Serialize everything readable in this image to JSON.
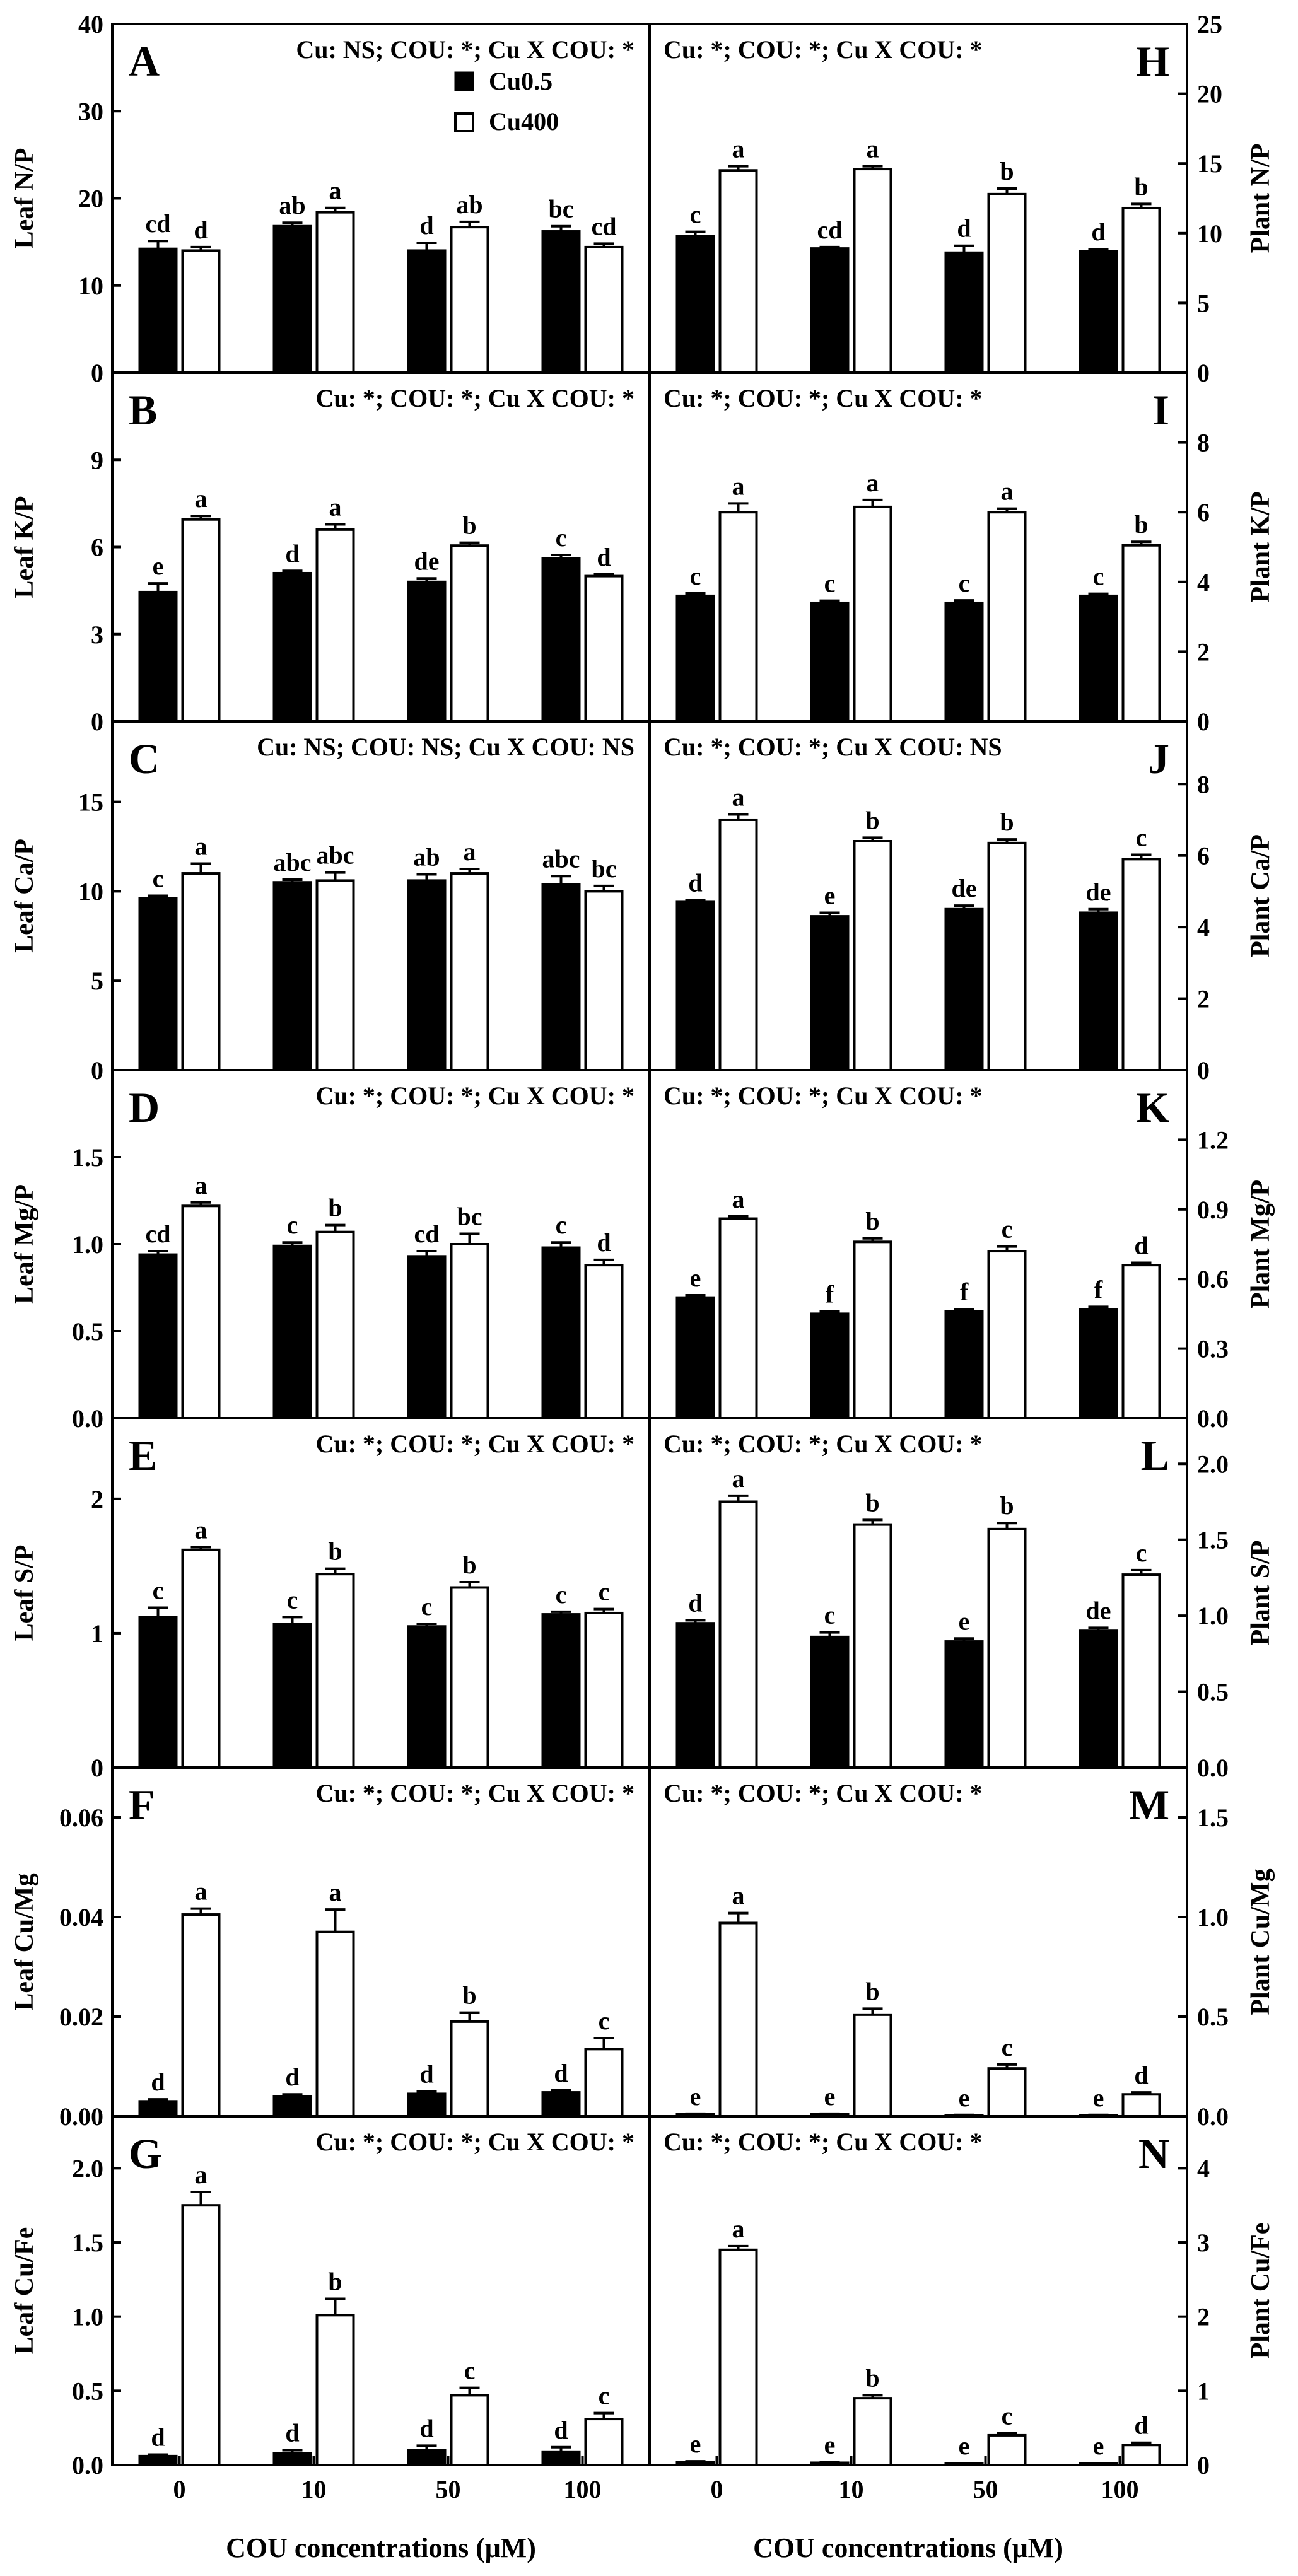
{
  "figure": {
    "xlabel": "COU concentrations (μM)",
    "categories": [
      "0",
      "10",
      "50",
      "100"
    ],
    "legend": [
      {
        "name": "Cu0.5",
        "fill": "#000000"
      },
      {
        "name": "Cu400",
        "fill": "#ffffff"
      }
    ]
  },
  "chart_data": [
    {
      "type": "bar",
      "panel": "A",
      "column": "left",
      "ylabel": "Leaf N/P",
      "stats": "Cu: NS; COU: *; Cu X COU: *",
      "ylim": [
        0,
        40
      ],
      "yticks": [
        0,
        10,
        20,
        30,
        40
      ],
      "tick_labels": [
        "0",
        "10",
        "20",
        "30",
        "40"
      ],
      "categories": [
        "0",
        "10",
        "50",
        "100"
      ],
      "series": [
        {
          "name": "Cu0.5",
          "values": [
            14.2,
            16.8,
            14.0,
            16.2
          ],
          "errors": [
            0.9,
            0.4,
            0.9,
            0.6
          ],
          "letters": [
            "cd",
            "ab",
            "d",
            "bc"
          ]
        },
        {
          "name": "Cu400",
          "values": [
            14.0,
            18.4,
            16.7,
            14.4
          ],
          "errors": [
            0.4,
            0.5,
            0.6,
            0.4
          ],
          "letters": [
            "d",
            "a",
            "ab",
            "cd"
          ]
        }
      ]
    },
    {
      "type": "bar",
      "panel": "B",
      "column": "left",
      "ylabel": "Leaf K/P",
      "stats": "Cu: *; COU: *; Cu X COU: *",
      "ylim": [
        0,
        12
      ],
      "yticks": [
        0,
        3,
        6,
        9
      ],
      "tick_labels": [
        "0",
        "3",
        "6",
        "9"
      ],
      "categories": [
        "0",
        "10",
        "50",
        "100"
      ],
      "series": [
        {
          "name": "Cu0.5",
          "values": [
            4.45,
            5.1,
            4.8,
            5.6
          ],
          "errors": [
            0.3,
            0.08,
            0.12,
            0.13
          ],
          "letters": [
            "e",
            "d",
            "de",
            "c"
          ]
        },
        {
          "name": "Cu400",
          "values": [
            6.95,
            6.6,
            6.05,
            5.0
          ],
          "errors": [
            0.12,
            0.18,
            0.1,
            0.06
          ],
          "letters": [
            "a",
            "a",
            "b",
            "d"
          ]
        }
      ]
    },
    {
      "type": "bar",
      "panel": "C",
      "column": "left",
      "ylabel": "Leaf Ca/P",
      "stats": "Cu: NS; COU: NS; Cu X COU: NS",
      "ylim": [
        0,
        19.5
      ],
      "yticks": [
        0,
        5,
        10,
        15
      ],
      "tick_labels": [
        "0",
        "5",
        "10",
        "15"
      ],
      "categories": [
        "0",
        "10",
        "50",
        "100"
      ],
      "series": [
        {
          "name": "Cu0.5",
          "values": [
            9.6,
            10.5,
            10.6,
            10.4
          ],
          "errors": [
            0.15,
            0.15,
            0.35,
            0.45
          ],
          "letters": [
            "c",
            "abc",
            "ab",
            "abc"
          ]
        },
        {
          "name": "Cu400",
          "values": [
            11.0,
            10.6,
            11.0,
            10.0
          ],
          "errors": [
            0.55,
            0.45,
            0.25,
            0.3
          ],
          "letters": [
            "a",
            "abc",
            "a",
            "bc"
          ]
        }
      ]
    },
    {
      "type": "bar",
      "panel": "D",
      "column": "left",
      "ylabel": "Leaf Mg/P",
      "stats": "Cu: *; COU: *; Cu X COU: *",
      "ylim": [
        0,
        2.0
      ],
      "yticks": [
        0,
        0.5,
        1.0,
        1.5
      ],
      "tick_labels": [
        "0.0",
        "0.5",
        "1.0",
        "1.5"
      ],
      "categories": [
        "0",
        "10",
        "50",
        "100"
      ],
      "series": [
        {
          "name": "Cu0.5",
          "values": [
            0.94,
            0.99,
            0.93,
            0.98
          ],
          "errors": [
            0.02,
            0.02,
            0.03,
            0.03
          ],
          "letters": [
            "cd",
            "c",
            "cd",
            "c"
          ]
        },
        {
          "name": "Cu400",
          "values": [
            1.22,
            1.07,
            1.0,
            0.88
          ],
          "errors": [
            0.02,
            0.04,
            0.06,
            0.03
          ],
          "letters": [
            "a",
            "b",
            "bc",
            "d"
          ]
        }
      ]
    },
    {
      "type": "bar",
      "panel": "E",
      "column": "left",
      "ylabel": "Leaf S/P",
      "stats": "Cu: *; COU: *; Cu X COU: *",
      "ylim": [
        0,
        2.6
      ],
      "yticks": [
        0,
        1,
        2
      ],
      "tick_labels": [
        "0",
        "1",
        "2"
      ],
      "categories": [
        "0",
        "10",
        "50",
        "100"
      ],
      "series": [
        {
          "name": "Cu0.5",
          "values": [
            1.12,
            1.07,
            1.05,
            1.14
          ],
          "errors": [
            0.07,
            0.05,
            0.02,
            0.02
          ],
          "letters": [
            "c",
            "c",
            "c",
            "c"
          ]
        },
        {
          "name": "Cu400",
          "values": [
            1.62,
            1.44,
            1.34,
            1.15
          ],
          "errors": [
            0.02,
            0.04,
            0.04,
            0.03
          ],
          "letters": [
            "a",
            "b",
            "b",
            "c"
          ]
        }
      ]
    },
    {
      "type": "bar",
      "panel": "F",
      "column": "left",
      "ylabel": "Leaf Cu/Mg",
      "stats": "Cu: *; COU: *; Cu X COU: *",
      "ylim": [
        0,
        0.07
      ],
      "yticks": [
        0,
        0.02,
        0.04,
        0.06
      ],
      "tick_labels": [
        "0.00",
        "0.02",
        "0.04",
        "0.06"
      ],
      "categories": [
        "0",
        "10",
        "50",
        "100"
      ],
      "series": [
        {
          "name": "Cu0.5",
          "values": [
            0.003,
            0.004,
            0.0045,
            0.0048
          ],
          "errors": [
            0.0004,
            0.0004,
            0.0005,
            0.0004
          ],
          "letters": [
            "d",
            "d",
            "d",
            "d"
          ]
        },
        {
          "name": "Cu400",
          "values": [
            0.0405,
            0.037,
            0.019,
            0.0135
          ],
          "errors": [
            0.0012,
            0.0045,
            0.0018,
            0.0022
          ],
          "letters": [
            "a",
            "a",
            "b",
            "c"
          ]
        }
      ]
    },
    {
      "type": "bar",
      "panel": "G",
      "column": "left",
      "ylabel": "Leaf Cu/Fe",
      "stats": "Cu: *; COU: *; Cu X COU: *",
      "ylim": [
        0,
        2.35
      ],
      "yticks": [
        0,
        0.5,
        1.0,
        1.5,
        2.0
      ],
      "tick_labels": [
        "0.0",
        "0.5",
        "1.0",
        "1.5",
        "2.0"
      ],
      "categories": [
        "0",
        "10",
        "50",
        "100"
      ],
      "series": [
        {
          "name": "Cu0.5",
          "values": [
            0.06,
            0.08,
            0.1,
            0.09
          ],
          "errors": [
            0.01,
            0.02,
            0.03,
            0.03
          ],
          "letters": [
            "d",
            "d",
            "d",
            "d"
          ]
        },
        {
          "name": "Cu400",
          "values": [
            1.75,
            1.01,
            0.47,
            0.31
          ],
          "errors": [
            0.09,
            0.11,
            0.05,
            0.04
          ],
          "letters": [
            "a",
            "b",
            "c",
            "c"
          ]
        }
      ]
    },
    {
      "type": "bar",
      "panel": "H",
      "column": "right",
      "ylabel": "Plant N/P",
      "stats": "Cu: *; COU: *; Cu X COU: *",
      "ylim": [
        0,
        25
      ],
      "yticks": [
        0,
        5,
        10,
        15,
        20,
        25
      ],
      "tick_labels": [
        "0",
        "5",
        "10",
        "15",
        "20",
        "25"
      ],
      "categories": [
        "0",
        "10",
        "50",
        "100"
      ],
      "series": [
        {
          "name": "Cu0.5",
          "values": [
            9.8,
            8.9,
            8.6,
            8.7
          ],
          "errors": [
            0.3,
            0.1,
            0.5,
            0.15
          ],
          "letters": [
            "c",
            "cd",
            "d",
            "d"
          ]
        },
        {
          "name": "Cu400",
          "values": [
            14.5,
            14.6,
            12.8,
            11.8
          ],
          "errors": [
            0.3,
            0.2,
            0.4,
            0.3
          ],
          "letters": [
            "a",
            "a",
            "b",
            "b"
          ]
        }
      ]
    },
    {
      "type": "bar",
      "panel": "I",
      "column": "right",
      "ylabel": "Plant K/P",
      "stats": "Cu: *; COU: *; Cu X COU: *",
      "ylim": [
        0,
        10
      ],
      "yticks": [
        0,
        2,
        4,
        6,
        8
      ],
      "tick_labels": [
        "0",
        "2",
        "4",
        "6",
        "8"
      ],
      "categories": [
        "0",
        "10",
        "50",
        "100"
      ],
      "series": [
        {
          "name": "Cu0.5",
          "values": [
            3.6,
            3.4,
            3.4,
            3.6
          ],
          "errors": [
            0.07,
            0.06,
            0.07,
            0.06
          ],
          "letters": [
            "c",
            "c",
            "c",
            "c"
          ]
        },
        {
          "name": "Cu400",
          "values": [
            6.0,
            6.15,
            6.0,
            5.05
          ],
          "errors": [
            0.25,
            0.2,
            0.1,
            0.1
          ],
          "letters": [
            "a",
            "a",
            "a",
            "b"
          ]
        }
      ]
    },
    {
      "type": "bar",
      "panel": "J",
      "column": "right",
      "ylabel": "Plant Ca/P",
      "stats": "Cu: *; COU: *; Cu X COU: NS",
      "ylim": [
        0,
        9.75
      ],
      "yticks": [
        0,
        2,
        4,
        6,
        8
      ],
      "tick_labels": [
        "0",
        "2",
        "4",
        "6",
        "8"
      ],
      "categories": [
        "0",
        "10",
        "50",
        "100"
      ],
      "series": [
        {
          "name": "Cu0.5",
          "values": [
            4.7,
            4.3,
            4.5,
            4.4
          ],
          "errors": [
            0.05,
            0.1,
            0.1,
            0.1
          ],
          "letters": [
            "d",
            "e",
            "de",
            "de"
          ]
        },
        {
          "name": "Cu400",
          "values": [
            7.0,
            6.4,
            6.35,
            5.9
          ],
          "errors": [
            0.15,
            0.1,
            0.1,
            0.12
          ],
          "letters": [
            "a",
            "b",
            "b",
            "c"
          ]
        }
      ]
    },
    {
      "type": "bar",
      "panel": "K",
      "column": "right",
      "ylabel": "Plant Mg/P",
      "stats": "Cu: *; COU: *; Cu X COU: *",
      "ylim": [
        0,
        1.5
      ],
      "yticks": [
        0,
        0.3,
        0.6,
        0.9,
        1.2
      ],
      "tick_labels": [
        "0.0",
        "0.3",
        "0.6",
        "0.9",
        "1.2"
      ],
      "categories": [
        "0",
        "10",
        "50",
        "100"
      ],
      "series": [
        {
          "name": "Cu0.5",
          "values": [
            0.52,
            0.45,
            0.46,
            0.47
          ],
          "errors": [
            0.01,
            0.01,
            0.01,
            0.01
          ],
          "letters": [
            "e",
            "f",
            "f",
            "f"
          ]
        },
        {
          "name": "Cu400",
          "values": [
            0.86,
            0.76,
            0.72,
            0.66
          ],
          "errors": [
            0.01,
            0.015,
            0.02,
            0.01
          ],
          "letters": [
            "a",
            "b",
            "c",
            "d"
          ]
        }
      ]
    },
    {
      "type": "bar",
      "panel": "L",
      "column": "right",
      "ylabel": "Plant S/P",
      "stats": "Cu: *; COU: *; Cu X COU: *",
      "ylim": [
        0,
        2.3
      ],
      "yticks": [
        0,
        0.5,
        1.0,
        1.5,
        2.0
      ],
      "tick_labels": [
        "0.0",
        "0.5",
        "1.0",
        "1.5",
        "2.0"
      ],
      "categories": [
        "0",
        "10",
        "50",
        "100"
      ],
      "series": [
        {
          "name": "Cu0.5",
          "values": [
            0.95,
            0.86,
            0.83,
            0.9
          ],
          "errors": [
            0.02,
            0.03,
            0.02,
            0.02
          ],
          "letters": [
            "d",
            "c",
            "e",
            "de"
          ]
        },
        {
          "name": "Cu400",
          "values": [
            1.75,
            1.6,
            1.57,
            1.27
          ],
          "errors": [
            0.04,
            0.03,
            0.04,
            0.03
          ],
          "letters": [
            "a",
            "b",
            "b",
            "c"
          ]
        }
      ]
    },
    {
      "type": "bar",
      "panel": "M",
      "column": "right",
      "ylabel": "Plant Cu/Mg",
      "stats": "Cu: *; COU: *; Cu X COU: *",
      "ylim": [
        0,
        1.75
      ],
      "yticks": [
        0,
        0.5,
        1.0,
        1.5
      ],
      "tick_labels": [
        "0.0",
        "0.5",
        "1.0",
        "1.5"
      ],
      "categories": [
        "0",
        "10",
        "50",
        "100"
      ],
      "series": [
        {
          "name": "Cu0.5",
          "values": [
            0.01,
            0.01,
            0.005,
            0.005
          ],
          "errors": [
            0.003,
            0.003,
            0.002,
            0.002
          ],
          "letters": [
            "e",
            "e",
            "e",
            "e"
          ]
        },
        {
          "name": "Cu400",
          "values": [
            0.97,
            0.51,
            0.24,
            0.11
          ],
          "errors": [
            0.05,
            0.03,
            0.02,
            0.01
          ],
          "letters": [
            "a",
            "b",
            "c",
            "d"
          ]
        }
      ]
    },
    {
      "type": "bar",
      "panel": "N",
      "column": "right",
      "ylabel": "Plant Cu/Fe",
      "stats": "Cu: *; COU: *; Cu X COU: *",
      "ylim": [
        0,
        4.7
      ],
      "yticks": [
        0,
        1,
        2,
        3,
        4
      ],
      "tick_labels": [
        "0",
        "1",
        "2",
        "3",
        "4"
      ],
      "categories": [
        "0",
        "10",
        "50",
        "100"
      ],
      "series": [
        {
          "name": "Cu0.5",
          "values": [
            0.04,
            0.03,
            0.02,
            0.02
          ],
          "errors": [
            0.01,
            0.01,
            0.005,
            0.005
          ],
          "letters": [
            "e",
            "e",
            "e",
            "e"
          ]
        },
        {
          "name": "Cu400",
          "values": [
            2.9,
            0.9,
            0.4,
            0.27
          ],
          "errors": [
            0.05,
            0.04,
            0.03,
            0.03
          ],
          "letters": [
            "a",
            "b",
            "c",
            "d"
          ]
        }
      ]
    }
  ]
}
